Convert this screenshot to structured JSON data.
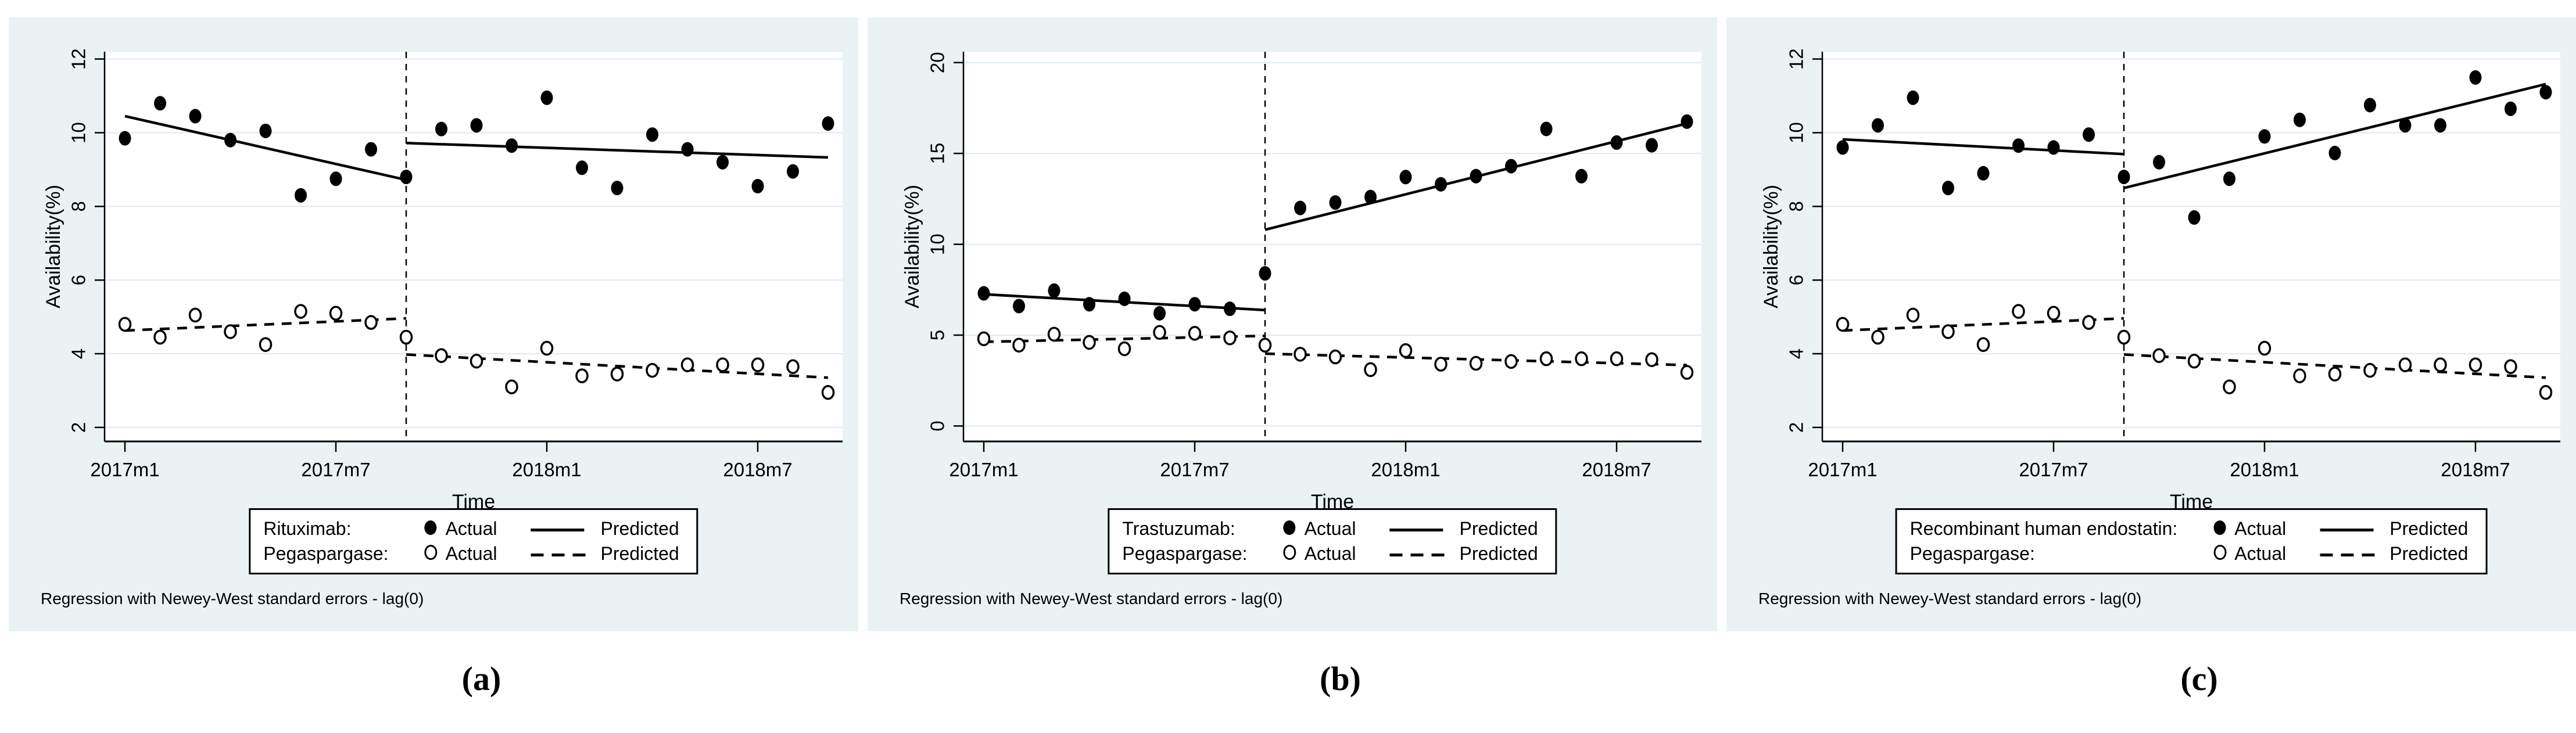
{
  "page": {
    "background": "#ffffff",
    "panel_background": "#eaf2f3",
    "grid_color": "#dfeaee",
    "ink_color": "#000000"
  },
  "chart_data": [
    {
      "type": "scatter",
      "subtype": "interrupted-time-series",
      "title": "",
      "xlabel": "Time",
      "ylabel": "Availability(%)",
      "x_tick_labels": [
        "2017m1",
        "2017m7",
        "2018m1",
        "2018m7"
      ],
      "x_tick_indices": [
        0,
        6,
        12,
        18
      ],
      "n_months": 21,
      "intervention_index": 8,
      "intervention_line": "dashed-vertical",
      "grid": "horizontal",
      "yticks": [
        2,
        4,
        6,
        8,
        10,
        12
      ],
      "ylim": [
        1.62,
        12.2
      ],
      "series": [
        {
          "name": "Rituximab",
          "marker": "filled",
          "line": "solid",
          "actual": [
            9.85,
            10.8,
            10.45,
            9.8,
            10.05,
            8.3,
            8.75,
            9.55,
            8.8,
            10.1,
            10.2,
            9.65,
            10.95,
            9.05,
            8.5,
            9.95,
            9.55,
            9.2,
            8.55,
            8.95,
            10.25
          ],
          "predicted_pre": {
            "start": 10.45,
            "end": 8.72
          },
          "predicted_post": {
            "start": 9.72,
            "end": 9.33
          }
        },
        {
          "name": "Pegaspargase",
          "marker": "open",
          "line": "dashed",
          "actual": [
            4.8,
            4.45,
            5.05,
            4.6,
            4.25,
            5.15,
            5.1,
            4.85,
            4.45,
            3.95,
            3.8,
            3.1,
            4.15,
            3.4,
            3.45,
            3.55,
            3.7,
            3.7,
            3.7,
            3.65,
            2.95
          ],
          "predicted_pre": {
            "start": 4.63,
            "end": 4.96
          },
          "predicted_post": {
            "start": 3.98,
            "end": 3.35
          }
        }
      ],
      "legend": {
        "drug1_label": "Rituximab:",
        "drug2_label": "Pegaspargase:",
        "actual_label": "Actual",
        "predicted_label": "Predicted"
      },
      "note": "Regression with Newey-West standard errors - lag(0)",
      "caption": "(a)"
    },
    {
      "type": "scatter",
      "subtype": "interrupted-time-series",
      "title": "",
      "xlabel": "Time",
      "ylabel": "Availability(%)",
      "x_tick_labels": [
        "2017m1",
        "2017m7",
        "2018m1",
        "2018m7"
      ],
      "x_tick_indices": [
        0,
        6,
        12,
        18
      ],
      "n_months": 21,
      "intervention_index": 8,
      "intervention_line": "dashed-vertical",
      "grid": "horizontal",
      "yticks": [
        0,
        5,
        10,
        15,
        20
      ],
      "ylim": [
        -0.85,
        20.6
      ],
      "series": [
        {
          "name": "Trastuzumab",
          "marker": "filled",
          "line": "solid",
          "actual": [
            7.3,
            6.6,
            7.45,
            6.7,
            7.0,
            6.2,
            6.7,
            6.45,
            8.4,
            12.0,
            12.3,
            12.6,
            13.7,
            13.3,
            13.75,
            14.3,
            16.35,
            13.75,
            15.6,
            15.45,
            16.75
          ],
          "predicted_pre": {
            "start": 7.25,
            "end": 6.38
          },
          "predicted_post": {
            "start": 10.8,
            "end": 16.65
          }
        },
        {
          "name": "Pegaspargase",
          "marker": "open",
          "line": "dashed",
          "actual": [
            4.8,
            4.45,
            5.05,
            4.6,
            4.25,
            5.15,
            5.1,
            4.85,
            4.45,
            3.95,
            3.8,
            3.1,
            4.15,
            3.4,
            3.45,
            3.55,
            3.7,
            3.7,
            3.7,
            3.65,
            2.95
          ],
          "predicted_pre": {
            "start": 4.63,
            "end": 4.96
          },
          "predicted_post": {
            "start": 3.98,
            "end": 3.35
          }
        }
      ],
      "legend": {
        "drug1_label": "Trastuzumab:",
        "drug2_label": "Pegaspargase:",
        "actual_label": "Actual",
        "predicted_label": "Predicted"
      },
      "note": "Regression with Newey-West standard errors - lag(0)",
      "caption": "(b)"
    },
    {
      "type": "scatter",
      "subtype": "interrupted-time-series",
      "title": "",
      "xlabel": "Time",
      "ylabel": "Availability(%)",
      "x_tick_labels": [
        "2017m1",
        "2017m7",
        "2018m1",
        "2018m7"
      ],
      "x_tick_indices": [
        0,
        6,
        12,
        18
      ],
      "n_months": 21,
      "intervention_index": 8,
      "intervention_line": "dashed-vertical",
      "grid": "horizontal",
      "yticks": [
        2,
        4,
        6,
        8,
        10,
        12
      ],
      "ylim": [
        1.62,
        12.2
      ],
      "series": [
        {
          "name": "Recombinant human endostatin",
          "marker": "filled",
          "line": "solid",
          "actual": [
            9.6,
            10.2,
            10.95,
            8.5,
            8.9,
            9.65,
            9.6,
            9.95,
            8.8,
            9.2,
            7.7,
            8.75,
            9.9,
            10.35,
            9.45,
            10.75,
            10.2,
            10.2,
            11.5,
            10.65,
            11.1
          ],
          "predicted_pre": {
            "start": 9.82,
            "end": 9.42
          },
          "predicted_post": {
            "start": 8.5,
            "end": 11.32
          }
        },
        {
          "name": "Pegaspargase",
          "marker": "open",
          "line": "dashed",
          "actual": [
            4.8,
            4.45,
            5.05,
            4.6,
            4.25,
            5.15,
            5.1,
            4.85,
            4.45,
            3.95,
            3.8,
            3.1,
            4.15,
            3.4,
            3.45,
            3.55,
            3.7,
            3.7,
            3.7,
            3.65,
            2.95
          ],
          "predicted_pre": {
            "start": 4.63,
            "end": 4.96
          },
          "predicted_post": {
            "start": 3.98,
            "end": 3.35
          }
        }
      ],
      "legend": {
        "drug1_label": "Recombinant human endostatin:",
        "drug2_label": "Pegaspargase:",
        "actual_label": "Actual",
        "predicted_label": "Predicted"
      },
      "note": "Regression with Newey-West standard errors - lag(0)",
      "caption": "(c)"
    }
  ]
}
